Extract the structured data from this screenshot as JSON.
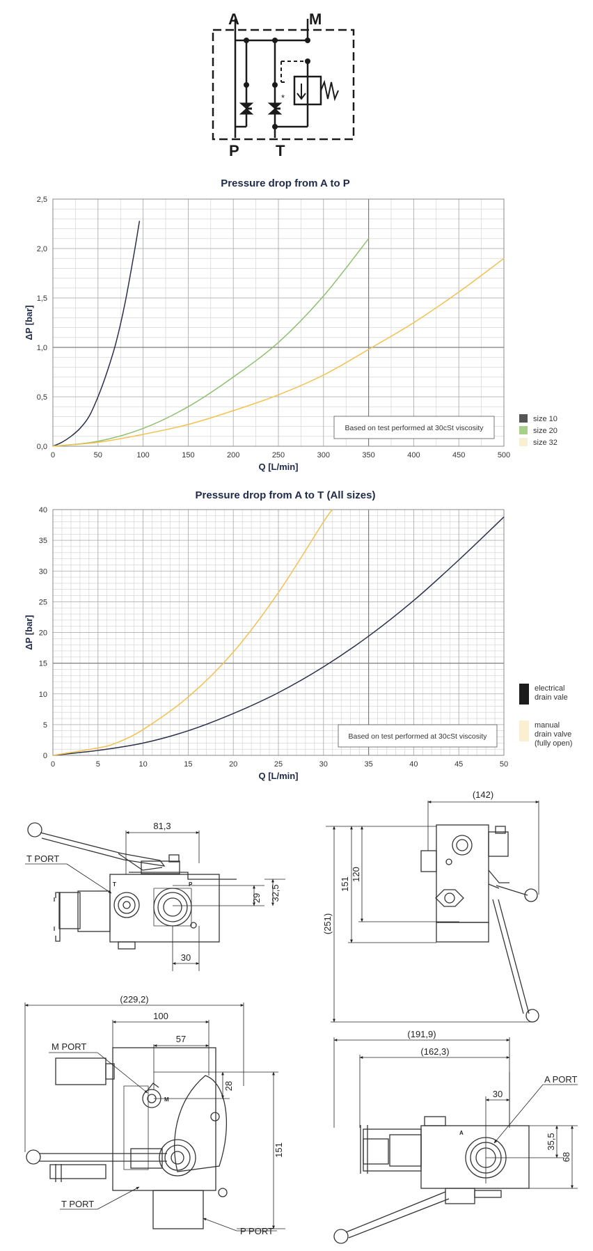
{
  "schematic": {
    "ports": {
      "a": "A",
      "m": "M",
      "p": "P",
      "t": "T"
    },
    "asterisk": "*"
  },
  "chart_data": [
    {
      "type": "line",
      "title": "Pressure drop from A to P",
      "xlabel": "Q [L/min]",
      "ylabel": "ΔP [bar]",
      "xlim": [
        0,
        500
      ],
      "ylim": [
        0,
        2.5
      ],
      "x_ticks": [
        0,
        50,
        100,
        150,
        200,
        250,
        300,
        350,
        400,
        450,
        500
      ],
      "y_ticks": [
        0,
        0.5,
        1.0,
        1.5,
        2.0,
        2.5
      ],
      "x_tick_labels": [
        "0",
        "50",
        "100",
        "150",
        "200",
        "250",
        "300",
        "350",
        "400",
        "450",
        "500"
      ],
      "y_tick_labels": [
        "0,0",
        "0,5",
        "1,0",
        "1,5",
        "2,0",
        "2,5"
      ],
      "grid": true,
      "annotation": "Based on test performed at 30cSt viscosity",
      "legend_position": "right",
      "series": [
        {
          "name": "size 10",
          "color": "#2a2f4a",
          "legend_color": "#555555",
          "x": [
            0,
            10,
            20,
            30,
            40,
            50,
            60,
            70,
            80,
            90,
            96
          ],
          "y": [
            0.0,
            0.04,
            0.1,
            0.18,
            0.3,
            0.5,
            0.75,
            1.05,
            1.45,
            1.95,
            2.28
          ]
        },
        {
          "name": "size 20",
          "color": "#8fbf6f",
          "legend_color": "#a7cf88",
          "x": [
            0,
            50,
            100,
            150,
            200,
            250,
            300,
            350
          ],
          "y": [
            0.0,
            0.05,
            0.18,
            0.4,
            0.7,
            1.05,
            1.52,
            2.1
          ]
        },
        {
          "name": "size 32",
          "color": "#f2c14e",
          "legend_color": "#fbefd2",
          "x": [
            0,
            50,
            100,
            150,
            200,
            250,
            300,
            350,
            400,
            450,
            500
          ],
          "y": [
            0.0,
            0.04,
            0.12,
            0.22,
            0.36,
            0.52,
            0.72,
            0.98,
            1.25,
            1.56,
            1.9
          ]
        }
      ]
    },
    {
      "type": "line",
      "title": "Pressure drop from A to T (All sizes)",
      "xlabel": "Q [L/min]",
      "ylabel": "ΔP [bar]",
      "xlim": [
        0,
        50
      ],
      "ylim": [
        0,
        40
      ],
      "x_ticks": [
        0,
        5,
        10,
        15,
        20,
        25,
        30,
        35,
        40,
        45,
        50
      ],
      "y_ticks": [
        0,
        5,
        10,
        15,
        20,
        25,
        30,
        35,
        40
      ],
      "x_tick_labels": [
        "0",
        "5",
        "10",
        "15",
        "20",
        "25",
        "30",
        "35",
        "40",
        "45",
        "50"
      ],
      "y_tick_labels": [
        "0",
        "5",
        "10",
        "15",
        "20",
        "25",
        "30",
        "35",
        "40"
      ],
      "grid": true,
      "annotation": "Based on test performed at 30cSt viscosity",
      "legend_position": "right",
      "series": [
        {
          "name": "electrical drain vale",
          "label_lines": [
            "electrical",
            "drain vale"
          ],
          "color": "#2a2f4a",
          "legend_color": "#1c1c1c",
          "x": [
            0,
            5,
            10,
            15,
            20,
            25,
            30,
            35,
            40,
            45,
            50
          ],
          "y": [
            0.0,
            0.8,
            2.0,
            4.0,
            6.8,
            10.2,
            14.4,
            19.4,
            25.2,
            31.8,
            38.8
          ]
        },
        {
          "name": "manual drain valve (fully open)",
          "label_lines": [
            "manual",
            "drain valve",
            "(fully open)"
          ],
          "color": "#f2c14e",
          "legend_color": "#fbefd2",
          "x": [
            0,
            5,
            7,
            10,
            15,
            20,
            25,
            30,
            31
          ],
          "y": [
            0.0,
            1.2,
            2.0,
            4.2,
            9.5,
            16.8,
            26.5,
            38.0,
            40.0
          ]
        }
      ]
    }
  ],
  "drawings": {
    "front_view": {
      "labels": {
        "t_port": "T PORT",
        "t": "T",
        "p": "P"
      },
      "dims": {
        "width": "81,3",
        "h1": "29",
        "h2": "32,5",
        "bottom": "30"
      }
    },
    "side_view": {
      "dims": {
        "top": "(142)",
        "h120": "120",
        "h151": "151",
        "h251": "(251)"
      }
    },
    "top_view": {
      "labels": {
        "m_port": "M PORT",
        "m": "M",
        "t_port": "T PORT",
        "p_port": "P PORT"
      },
      "dims": {
        "overall": "(229,2)",
        "w100": "100",
        "w57": "57",
        "h28": "28",
        "h151": "151"
      }
    },
    "rear_view": {
      "labels": {
        "a_port": "A PORT",
        "a": "A"
      },
      "dims": {
        "w191": "(191,9)",
        "w162": "(162,3)",
        "w30": "30",
        "h35": "35,5",
        "h68": "68"
      }
    }
  }
}
